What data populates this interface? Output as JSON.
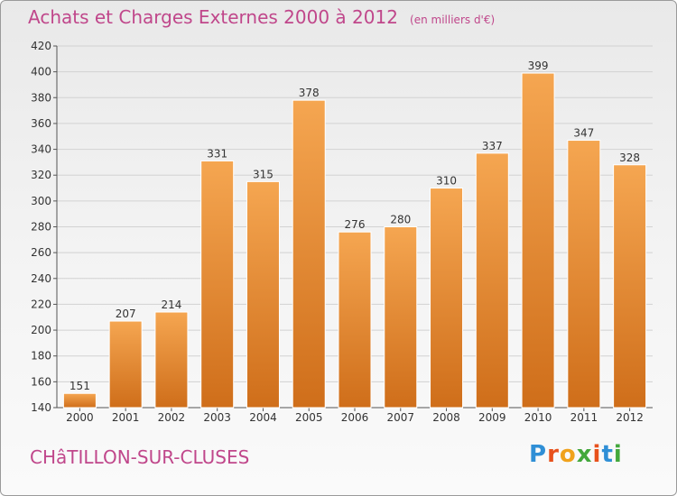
{
  "title": "Achats et Charges Externes 2000 à 2012",
  "subtitle": "(en milliers d'€)",
  "commune": "CHâTILLON-SUR-CLUSES",
  "logo": {
    "letters": [
      "P",
      "r",
      "o",
      "x",
      "i",
      "t",
      "i"
    ],
    "colors": [
      "#2f8fd6",
      "#e8511c",
      "#f0a21c",
      "#43a83c",
      "#e8511c",
      "#2f8fd6",
      "#43a83c"
    ]
  },
  "colors": {
    "bar_light": "#f5a651",
    "bar_dark": "#cf6e1a",
    "accent": "#c0478b",
    "grid": "#d2d2d2"
  },
  "chart_data": {
    "type": "bar",
    "categories": [
      "2000",
      "2001",
      "2002",
      "2003",
      "2004",
      "2005",
      "2006",
      "2007",
      "2008",
      "2009",
      "2010",
      "2011",
      "2012"
    ],
    "values": [
      151,
      207,
      214,
      331,
      315,
      378,
      276,
      280,
      310,
      337,
      399,
      347,
      328
    ],
    "value_labels": [
      "151",
      "207",
      "214",
      "331",
      "315",
      "378",
      "276",
      "280",
      "310",
      "337",
      "399",
      "347",
      "328"
    ],
    "title": "Achats et Charges Externes 2000 à 2012",
    "xlabel": "",
    "ylabel": "",
    "ylim": [
      140,
      420
    ],
    "yticks": [
      140,
      160,
      180,
      200,
      220,
      240,
      260,
      280,
      300,
      320,
      340,
      360,
      380,
      400,
      420
    ],
    "grid": true,
    "legend": "none"
  }
}
